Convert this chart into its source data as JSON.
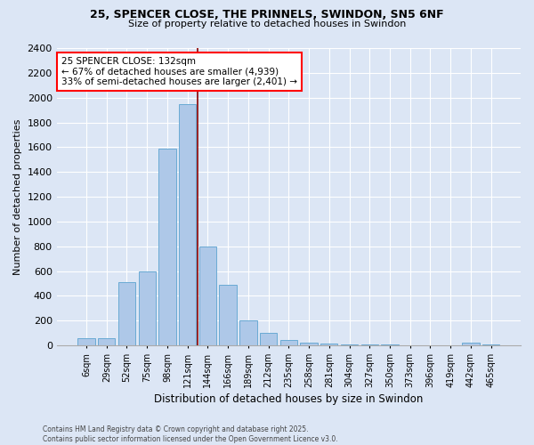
{
  "title_line1": "25, SPENCER CLOSE, THE PRINNELS, SWINDON, SN5 6NF",
  "title_line2": "Size of property relative to detached houses in Swindon",
  "xlabel": "Distribution of detached houses by size in Swindon",
  "ylabel": "Number of detached properties",
  "categories": [
    "6sqm",
    "29sqm",
    "52sqm",
    "75sqm",
    "98sqm",
    "121sqm",
    "144sqm",
    "166sqm",
    "189sqm",
    "212sqm",
    "235sqm",
    "258sqm",
    "281sqm",
    "304sqm",
    "327sqm",
    "350sqm",
    "373sqm",
    "396sqm",
    "419sqm",
    "442sqm",
    "465sqm"
  ],
  "values": [
    60,
    60,
    510,
    600,
    1590,
    1950,
    800,
    490,
    200,
    100,
    40,
    20,
    15,
    10,
    5,
    5,
    3,
    3,
    3,
    20,
    5
  ],
  "bar_color": "#aec8e8",
  "bar_edge_color": "#6aaad4",
  "vline_x_index": 5.5,
  "vline_color": "#8b0000",
  "annotation_text": "25 SPENCER CLOSE: 132sqm\n← 67% of detached houses are smaller (4,939)\n33% of semi-detached houses are larger (2,401) →",
  "annotation_box_color": "white",
  "annotation_box_edge_color": "red",
  "ylim": [
    0,
    2400
  ],
  "yticks": [
    0,
    200,
    400,
    600,
    800,
    1000,
    1200,
    1400,
    1600,
    1800,
    2000,
    2200,
    2400
  ],
  "footer_line1": "Contains HM Land Registry data © Crown copyright and database right 2025.",
  "footer_line2": "Contains public sector information licensed under the Open Government Licence v3.0.",
  "background_color": "#dce6f5",
  "plot_bg_color": "#dce6f5",
  "title_fontsize": 9,
  "subtitle_fontsize": 8
}
